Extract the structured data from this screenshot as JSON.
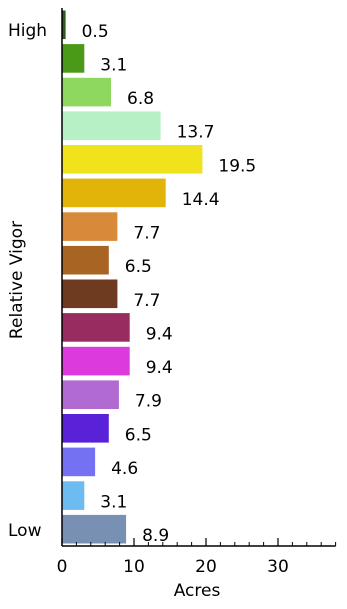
{
  "chart_data": {
    "type": "bar",
    "orientation": "horizontal",
    "ylabel": "Relative Vigor",
    "xlabel": "Acres",
    "y_end_labels": {
      "top": "High",
      "bottom": "Low"
    },
    "xlim": [
      0,
      38
    ],
    "xticks": [
      0,
      10,
      20,
      30
    ],
    "grid": false,
    "bars": [
      {
        "value": 0.5,
        "label": "0.5",
        "color": "#2e5a1c"
      },
      {
        "value": 3.1,
        "label": "3.1",
        "color": "#4a9a18"
      },
      {
        "value": 6.8,
        "label": "6.8",
        "color": "#8fd860"
      },
      {
        "value": 13.7,
        "label": "13.7",
        "color": "#b6f0c4"
      },
      {
        "value": 19.5,
        "label": "19.5",
        "color": "#f0e21c"
      },
      {
        "value": 14.4,
        "label": "14.4",
        "color": "#e2b40a"
      },
      {
        "value": 7.7,
        "label": "7.7",
        "color": "#d88a3a"
      },
      {
        "value": 6.5,
        "label": "6.5",
        "color": "#a86422"
      },
      {
        "value": 7.7,
        "label": "7.7",
        "color": "#6e3a20"
      },
      {
        "value": 9.4,
        "label": "9.4",
        "color": "#982c60"
      },
      {
        "value": 9.4,
        "label": "9.4",
        "color": "#dc3adc"
      },
      {
        "value": 7.9,
        "label": "7.9",
        "color": "#b06ad2"
      },
      {
        "value": 6.5,
        "label": "6.5",
        "color": "#5a22d8"
      },
      {
        "value": 4.6,
        "label": "4.6",
        "color": "#7472f2"
      },
      {
        "value": 3.1,
        "label": "3.1",
        "color": "#6cbcf2"
      },
      {
        "value": 8.9,
        "label": "8.9",
        "color": "#7890b4"
      }
    ]
  }
}
